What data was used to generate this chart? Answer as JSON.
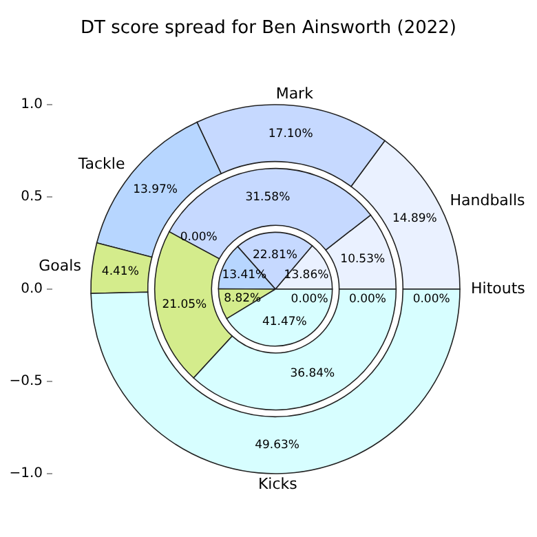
{
  "chart_data": {
    "type": "pie",
    "title": "DT score spread for Ben Ainsworth (2022)",
    "categories": [
      "Hitouts",
      "Handballs",
      "Mark",
      "Tackle",
      "Goals",
      "Kicks"
    ],
    "colors": [
      "#f4f4ff",
      "#eaf1ff",
      "#c6d9ff",
      "#b7d6ff",
      "#d4ec8c",
      "#d7feff"
    ],
    "series": [
      {
        "values": [
          0.0,
          14.89,
          17.1,
          13.97,
          4.41,
          49.63
        ],
        "value_labels": [
          "0.00%",
          "14.89%",
          "17.10%",
          "13.97%",
          "4.41%",
          "49.63%"
        ]
      },
      {
        "values": [
          0.0,
          10.53,
          31.58,
          0.0,
          21.05,
          36.84
        ],
        "value_labels": [
          "0.00%",
          "10.53%",
          "31.58%",
          "0.00%",
          "21.05%",
          "36.84%"
        ]
      },
      {
        "values": [
          0.0,
          13.86,
          22.81,
          13.41,
          8.82,
          41.47
        ],
        "value_labels": [
          "0.00%",
          "13.86%",
          "22.81%",
          "13.41%",
          "8.82%",
          "41.47%"
        ]
      }
    ],
    "annotations": [
      "1.0",
      "0.5",
      "0.0",
      "−0.5",
      "−1.0"
    ]
  }
}
